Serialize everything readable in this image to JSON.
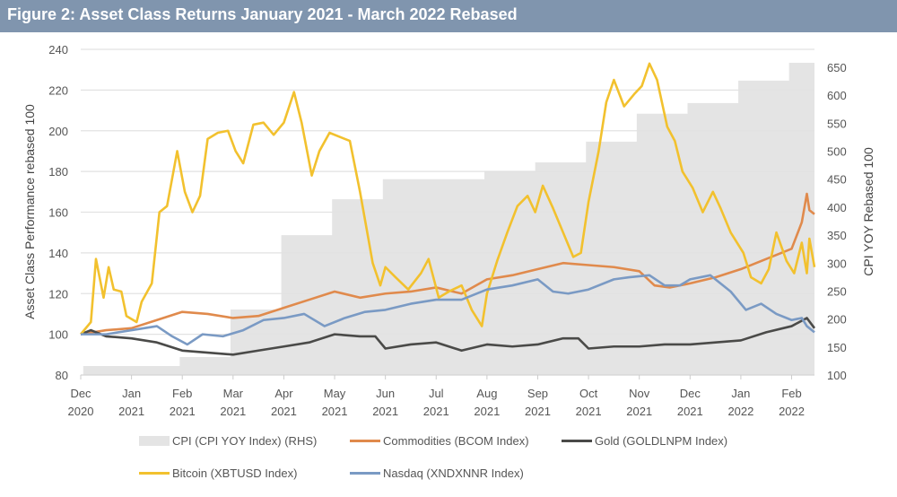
{
  "title": "Figure 2: Asset Class Returns January 2021 - March 2022 Rebased",
  "chart_data": {
    "type": "line",
    "title": "Figure 2: Asset Class Returns January 2021 - March 2022 Rebased",
    "ylabel": "Asset Class Performance rebased 100",
    "y2label": "CPI YOY Rebased 100",
    "ylim": [
      80,
      240
    ],
    "yticks": [
      "80",
      "100",
      "120",
      "140",
      "160",
      "180",
      "200",
      "220",
      "240"
    ],
    "y2lim": [
      100,
      682
    ],
    "y2ticks": [
      "100",
      "150",
      "200",
      "250",
      "300",
      "350",
      "400",
      "450",
      "500",
      "550",
      "600",
      "650"
    ],
    "xticks": [
      [
        "Dec",
        "2020"
      ],
      [
        "Jan",
        "2021"
      ],
      [
        "Feb",
        "2021"
      ],
      [
        "Mar",
        "2021"
      ],
      [
        "Apr",
        "2021"
      ],
      [
        "May",
        "2021"
      ],
      [
        "Jun",
        "2021"
      ],
      [
        "Jul",
        "2021"
      ],
      [
        "Aug",
        "2021"
      ],
      [
        "Sep",
        "2021"
      ],
      [
        "Oct",
        "2021"
      ],
      [
        "Nov",
        "2021"
      ],
      [
        "Dec",
        "2021"
      ],
      [
        "Jan",
        "2022"
      ],
      [
        "Feb",
        "2022"
      ]
    ],
    "xrange_months": [
      0,
      14.45
    ],
    "grid": true,
    "legend_position": "bottom",
    "series": [
      {
        "name": "CPI (CPI YOY Index) (RHS)",
        "axis": "right",
        "kind": "step-area",
        "color": "#e4e4e4",
        "steps": [
          [
            0.05,
            116
          ],
          [
            1.95,
            132
          ],
          [
            2.95,
            217
          ],
          [
            3.95,
            350
          ],
          [
            4.95,
            414
          ],
          [
            5.95,
            450
          ],
          [
            6.95,
            450
          ],
          [
            7.95,
            465
          ],
          [
            8.95,
            480
          ],
          [
            9.95,
            517
          ],
          [
            10.95,
            567
          ],
          [
            11.95,
            586
          ],
          [
            12.95,
            626
          ],
          [
            13.95,
            658
          ]
        ]
      },
      {
        "name": "Commodities (BCOM Index)",
        "axis": "left",
        "color": "#e08a4c",
        "points": [
          [
            0,
            100
          ],
          [
            0.5,
            102
          ],
          [
            1,
            103
          ],
          [
            1.5,
            107
          ],
          [
            2,
            111
          ],
          [
            2.5,
            110
          ],
          [
            3,
            108
          ],
          [
            3.5,
            109
          ],
          [
            4,
            113
          ],
          [
            4.5,
            117
          ],
          [
            5,
            121
          ],
          [
            5.5,
            118
          ],
          [
            6,
            120
          ],
          [
            6.5,
            121
          ],
          [
            7,
            123
          ],
          [
            7.5,
            120
          ],
          [
            8,
            127
          ],
          [
            8.5,
            129
          ],
          [
            9,
            132
          ],
          [
            9.5,
            135
          ],
          [
            10,
            134
          ],
          [
            10.5,
            133
          ],
          [
            11,
            131
          ],
          [
            11.3,
            124
          ],
          [
            11.6,
            123
          ],
          [
            12,
            125
          ],
          [
            12.5,
            128
          ],
          [
            13,
            132
          ],
          [
            13.5,
            137
          ],
          [
            14,
            142
          ],
          [
            14.2,
            155
          ],
          [
            14.3,
            169
          ],
          [
            14.35,
            161
          ],
          [
            14.45,
            159
          ]
        ]
      },
      {
        "name": "Gold (GOLDLNPM Index)",
        "axis": "left",
        "color": "#4a4a48",
        "points": [
          [
            0,
            100
          ],
          [
            0.2,
            102
          ],
          [
            0.5,
            99
          ],
          [
            1,
            98
          ],
          [
            1.5,
            96
          ],
          [
            2,
            92
          ],
          [
            2.5,
            91
          ],
          [
            3,
            90
          ],
          [
            3.5,
            92
          ],
          [
            4,
            94
          ],
          [
            4.5,
            96
          ],
          [
            5,
            100
          ],
          [
            5.5,
            99
          ],
          [
            5.8,
            99
          ],
          [
            6,
            93
          ],
          [
            6.5,
            95
          ],
          [
            7,
            96
          ],
          [
            7.5,
            92
          ],
          [
            8,
            95
          ],
          [
            8.5,
            94
          ],
          [
            9,
            95
          ],
          [
            9.5,
            98
          ],
          [
            9.8,
            98
          ],
          [
            10,
            93
          ],
          [
            10.5,
            94
          ],
          [
            11,
            94
          ],
          [
            11.5,
            95
          ],
          [
            12,
            95
          ],
          [
            12.5,
            96
          ],
          [
            13,
            97
          ],
          [
            13.5,
            101
          ],
          [
            14,
            104
          ],
          [
            14.3,
            108
          ],
          [
            14.45,
            103
          ]
        ]
      },
      {
        "name": "Bitcoin (XBTUSD Index)",
        "axis": "left",
        "color": "#f2c12e",
        "points": [
          [
            0,
            100
          ],
          [
            0.2,
            106
          ],
          [
            0.3,
            137
          ],
          [
            0.45,
            118
          ],
          [
            0.55,
            133
          ],
          [
            0.65,
            122
          ],
          [
            0.8,
            121
          ],
          [
            0.9,
            109
          ],
          [
            1.1,
            106
          ],
          [
            1.2,
            116
          ],
          [
            1.4,
            125
          ],
          [
            1.55,
            160
          ],
          [
            1.7,
            163
          ],
          [
            1.9,
            190
          ],
          [
            2.05,
            170
          ],
          [
            2.2,
            160
          ],
          [
            2.35,
            168
          ],
          [
            2.5,
            196
          ],
          [
            2.7,
            199
          ],
          [
            2.9,
            200
          ],
          [
            3.05,
            190
          ],
          [
            3.2,
            184
          ],
          [
            3.4,
            203
          ],
          [
            3.6,
            204
          ],
          [
            3.8,
            198
          ],
          [
            4.0,
            204
          ],
          [
            4.2,
            219
          ],
          [
            4.35,
            204
          ],
          [
            4.55,
            178
          ],
          [
            4.7,
            190
          ],
          [
            4.9,
            199
          ],
          [
            5.1,
            197
          ],
          [
            5.3,
            195
          ],
          [
            5.5,
            170
          ],
          [
            5.75,
            135
          ],
          [
            5.9,
            124
          ],
          [
            6.0,
            133
          ],
          [
            6.2,
            128
          ],
          [
            6.45,
            122
          ],
          [
            6.7,
            130
          ],
          [
            6.85,
            137
          ],
          [
            7.05,
            118
          ],
          [
            7.25,
            121
          ],
          [
            7.5,
            124
          ],
          [
            7.7,
            112
          ],
          [
            7.9,
            104
          ],
          [
            8.0,
            120
          ],
          [
            8.2,
            136
          ],
          [
            8.4,
            150
          ],
          [
            8.6,
            163
          ],
          [
            8.8,
            168
          ],
          [
            8.95,
            160
          ],
          [
            9.1,
            173
          ],
          [
            9.3,
            162
          ],
          [
            9.5,
            150
          ],
          [
            9.7,
            138
          ],
          [
            9.85,
            140
          ],
          [
            10.0,
            165
          ],
          [
            10.2,
            190
          ],
          [
            10.35,
            214
          ],
          [
            10.5,
            225
          ],
          [
            10.7,
            212
          ],
          [
            10.9,
            218
          ],
          [
            11.05,
            222
          ],
          [
            11.2,
            233
          ],
          [
            11.35,
            225
          ],
          [
            11.55,
            202
          ],
          [
            11.7,
            195
          ],
          [
            11.85,
            180
          ],
          [
            12.05,
            172
          ],
          [
            12.25,
            160
          ],
          [
            12.45,
            170
          ],
          [
            12.6,
            162
          ],
          [
            12.8,
            150
          ],
          [
            13.05,
            140
          ],
          [
            13.2,
            128
          ],
          [
            13.4,
            125
          ],
          [
            13.55,
            132
          ],
          [
            13.7,
            150
          ],
          [
            13.9,
            136
          ],
          [
            14.05,
            130
          ],
          [
            14.2,
            145
          ],
          [
            14.3,
            130
          ],
          [
            14.35,
            147
          ],
          [
            14.45,
            133
          ]
        ]
      },
      {
        "name": "Nasdaq (XNDXNNR Index)",
        "axis": "left",
        "color": "#7a9ac4",
        "points": [
          [
            0,
            100
          ],
          [
            0.5,
            100
          ],
          [
            1,
            102
          ],
          [
            1.5,
            104
          ],
          [
            1.8,
            99
          ],
          [
            2.1,
            95
          ],
          [
            2.4,
            100
          ],
          [
            2.8,
            99
          ],
          [
            3.2,
            102
          ],
          [
            3.6,
            107
          ],
          [
            4.0,
            108
          ],
          [
            4.4,
            110
          ],
          [
            4.8,
            104
          ],
          [
            5.2,
            108
          ],
          [
            5.6,
            111
          ],
          [
            6,
            112
          ],
          [
            6.5,
            115
          ],
          [
            7,
            117
          ],
          [
            7.5,
            117
          ],
          [
            8,
            122
          ],
          [
            8.5,
            124
          ],
          [
            9,
            127
          ],
          [
            9.3,
            121
          ],
          [
            9.6,
            120
          ],
          [
            10,
            122
          ],
          [
            10.5,
            127
          ],
          [
            10.8,
            128
          ],
          [
            11.2,
            129
          ],
          [
            11.5,
            124
          ],
          [
            11.8,
            124
          ],
          [
            12,
            127
          ],
          [
            12.4,
            129
          ],
          [
            12.8,
            121
          ],
          [
            13.1,
            112
          ],
          [
            13.4,
            115
          ],
          [
            13.7,
            110
          ],
          [
            14.0,
            107
          ],
          [
            14.2,
            108
          ],
          [
            14.3,
            104
          ],
          [
            14.45,
            101
          ]
        ]
      }
    ]
  }
}
